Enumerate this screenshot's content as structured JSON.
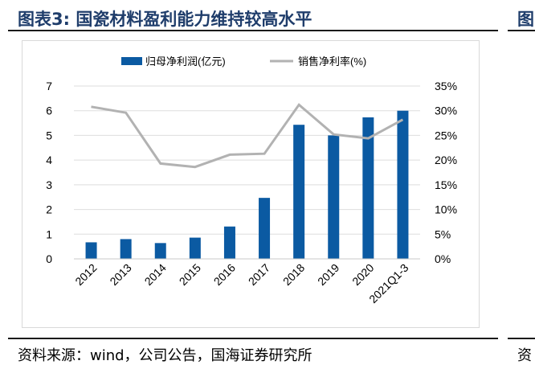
{
  "figure": {
    "title": "图表3:  国瓷材料盈利能力维持较高水平",
    "next_title_fragment": "图",
    "source": "资料来源：wind，公司公告，国海证券研究所",
    "next_source_fragment": "资"
  },
  "chart_data": {
    "type": "bar",
    "categories": [
      "2012",
      "2013",
      "2014",
      "2015",
      "2016",
      "2017",
      "2018",
      "2019",
      "2020",
      "2021Q1-3"
    ],
    "series": [
      {
        "name": "归母净利润(亿元)",
        "type": "bar",
        "axis": "left",
        "color": "#0b5aa2",
        "values": [
          0.67,
          0.8,
          0.64,
          0.86,
          1.31,
          2.47,
          5.43,
          5.0,
          5.73,
          6.0
        ]
      },
      {
        "name": "销售净利率(%)",
        "type": "line",
        "axis": "right",
        "color": "#b2b2b2",
        "values": [
          30.8,
          29.6,
          19.3,
          18.6,
          21.1,
          21.3,
          31.2,
          25.2,
          24.4,
          28.2
        ]
      }
    ],
    "y_left": {
      "min": 0,
      "max": 7,
      "ticks": [
        0,
        1,
        2,
        3,
        4,
        5,
        6,
        7
      ]
    },
    "y_right": {
      "min": 0,
      "max": 35,
      "ticks": [
        "0%",
        "5%",
        "10%",
        "15%",
        "20%",
        "25%",
        "30%",
        "35%"
      ]
    },
    "legend_position": "top-center",
    "grid": "horizontal"
  }
}
